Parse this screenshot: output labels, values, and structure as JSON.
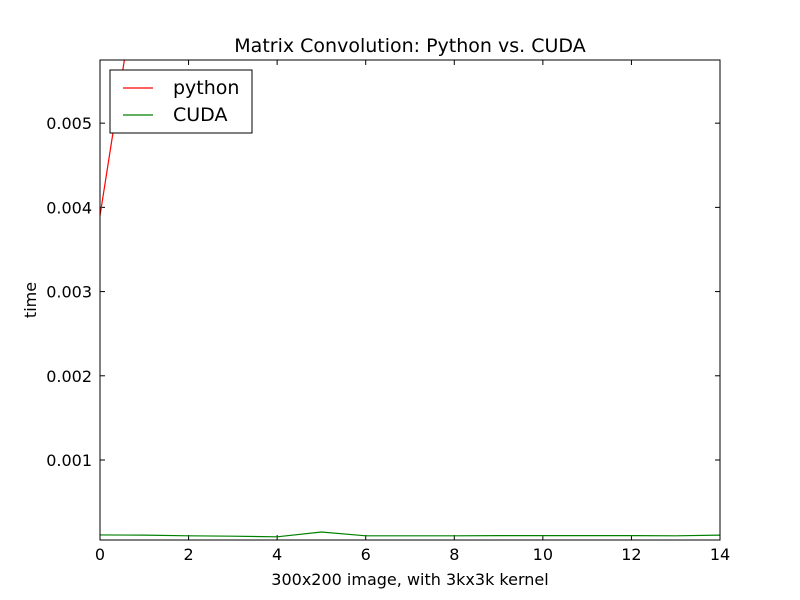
{
  "chart_data": {
    "type": "line",
    "title": "Matrix Convolution: Python vs. CUDA",
    "xlabel": "300x200 image, with 3kx3k kernel",
    "ylabel": "time",
    "xlim": [
      0,
      14
    ],
    "ylim": [
      5e-05,
      0.00575
    ],
    "x_ticks": [
      0,
      2,
      4,
      6,
      8,
      10,
      12,
      14
    ],
    "x_tick_labels": [
      "0",
      "2",
      "4",
      "6",
      "8",
      "10",
      "12",
      "14"
    ],
    "y_ticks": [
      0.001,
      0.002,
      0.003,
      0.004,
      0.005
    ],
    "y_tick_labels": [
      "0.001",
      "0.002",
      "0.003",
      "0.004",
      "0.005"
    ],
    "grid": false,
    "legend_position": "top-left",
    "series": [
      {
        "name": "python",
        "color": "#ff0000",
        "x": [
          0,
          0.55
        ],
        "y": [
          0.0039,
          0.00575
        ]
      },
      {
        "name": "CUDA",
        "color": "#008000",
        "x": [
          0,
          1,
          2,
          3,
          4,
          5,
          6,
          7,
          8,
          9,
          10,
          11,
          12,
          13,
          14
        ],
        "y": [
          0.00011,
          0.000108,
          0.0001,
          9.5e-05,
          8.8e-05,
          0.000145,
          0.0001,
          0.0001,
          0.0001,
          0.000102,
          0.000102,
          0.000102,
          0.000102,
          0.0001,
          0.000108
        ]
      }
    ]
  }
}
